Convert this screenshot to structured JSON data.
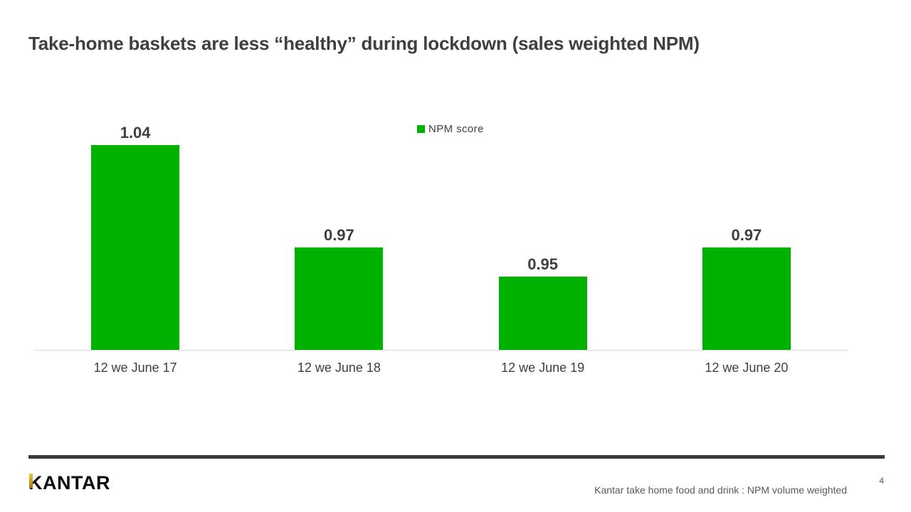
{
  "slide": {
    "title": "Take-home baskets are less “healthy” during lockdown (sales weighted NPM)"
  },
  "chart_data": {
    "type": "bar",
    "title": "",
    "categories": [
      "12 we June 17",
      "12 we June 18",
      "12 we June 19",
      "12 we June 20"
    ],
    "series": [
      {
        "name": "NPM score",
        "values": [
          1.04,
          0.97,
          0.95,
          0.97
        ],
        "color": "#00B200"
      }
    ],
    "value_labels": [
      "1.04",
      "0.97",
      "0.95",
      "0.97"
    ],
    "xlabel": "",
    "ylabel": "",
    "ylim": [
      0.9,
      1.066
    ],
    "grid": false,
    "y_axis_visible": false,
    "legend_position": "top-center"
  },
  "footer": {
    "brand": "KANTAR",
    "source": "Kantar take home food and drink : NPM volume weighted",
    "page_number": "4"
  },
  "colors": {
    "bar_green": "#00B200",
    "brand_gold": "#D8A825",
    "text_dark": "#3F3F3F",
    "text_gray": "#595959",
    "axis_line": "#D9D9D9",
    "footer_rule": "#3A3A3A"
  }
}
